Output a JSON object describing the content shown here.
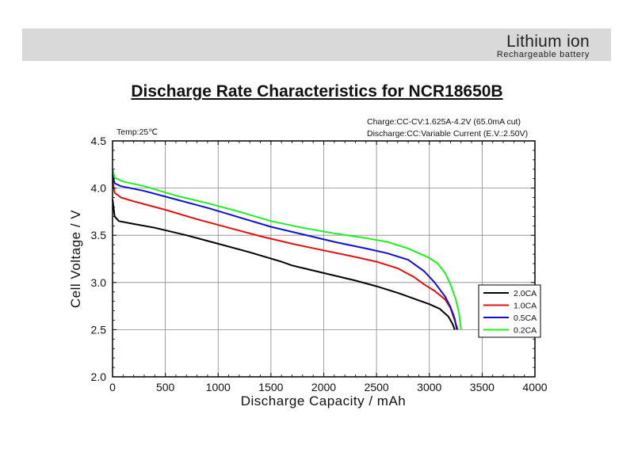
{
  "banner": {
    "brand": "Lithium ion",
    "subtitle": "Rechargeable  battery"
  },
  "chart_data": {
    "type": "line",
    "title": "Discharge Rate Characteristics for NCR18650B",
    "annotations": {
      "temp": "Temp:25℃",
      "charge": "Charge:CC-CV:1.625A-4.2V (65.0mA cut)",
      "discharge": "Discharge:CC:Variable Current (E.V.:2.50V)"
    },
    "xlabel": "Discharge  Capacity  /  mAh",
    "ylabel": "Cell  Voltage  /  V",
    "xlim": [
      0,
      4000
    ],
    "ylim": [
      2.0,
      4.5
    ],
    "xticks": [
      "0",
      "500",
      "1000",
      "1500",
      "2000",
      "2500",
      "3000",
      "3500",
      "4000"
    ],
    "yticks": [
      "2.0",
      "2.5",
      "3.0",
      "3.5",
      "4.0",
      "4.5"
    ],
    "grid": true,
    "legend_position": "right",
    "series": [
      {
        "name": "2.0CA",
        "color": "#000000",
        "points": [
          [
            0,
            3.88
          ],
          [
            20,
            3.7
          ],
          [
            60,
            3.65
          ],
          [
            200,
            3.62
          ],
          [
            400,
            3.58
          ],
          [
            700,
            3.5
          ],
          [
            1000,
            3.41
          ],
          [
            1300,
            3.32
          ],
          [
            1600,
            3.22
          ],
          [
            1700,
            3.18
          ],
          [
            2000,
            3.1
          ],
          [
            2300,
            3.02
          ],
          [
            2500,
            2.96
          ],
          [
            2700,
            2.89
          ],
          [
            2900,
            2.81
          ],
          [
            3000,
            2.77
          ],
          [
            3100,
            2.72
          ],
          [
            3180,
            2.64
          ],
          [
            3220,
            2.56
          ],
          [
            3240,
            2.5
          ]
        ]
      },
      {
        "name": "1.0CA",
        "color": "#e01010",
        "points": [
          [
            0,
            4.08
          ],
          [
            20,
            3.95
          ],
          [
            80,
            3.9
          ],
          [
            200,
            3.86
          ],
          [
            500,
            3.77
          ],
          [
            800,
            3.67
          ],
          [
            1100,
            3.58
          ],
          [
            1400,
            3.49
          ],
          [
            1700,
            3.41
          ],
          [
            2000,
            3.34
          ],
          [
            2300,
            3.27
          ],
          [
            2500,
            3.22
          ],
          [
            2700,
            3.15
          ],
          [
            2850,
            3.06
          ],
          [
            2950,
            2.98
          ],
          [
            3050,
            2.91
          ],
          [
            3150,
            2.82
          ],
          [
            3200,
            2.73
          ],
          [
            3230,
            2.63
          ],
          [
            3270,
            2.5
          ]
        ]
      },
      {
        "name": "0.5CA",
        "color": "#1010cc",
        "points": [
          [
            0,
            4.14
          ],
          [
            20,
            4.05
          ],
          [
            80,
            4.02
          ],
          [
            300,
            3.97
          ],
          [
            600,
            3.88
          ],
          [
            900,
            3.79
          ],
          [
            1200,
            3.69
          ],
          [
            1500,
            3.59
          ],
          [
            1800,
            3.51
          ],
          [
            2100,
            3.43
          ],
          [
            2400,
            3.36
          ],
          [
            2600,
            3.31
          ],
          [
            2800,
            3.24
          ],
          [
            2950,
            3.12
          ],
          [
            3050,
            3.0
          ],
          [
            3150,
            2.85
          ],
          [
            3200,
            2.74
          ],
          [
            3240,
            2.62
          ],
          [
            3260,
            2.5
          ]
        ]
      },
      {
        "name": "0.2CA",
        "color": "#22ee22",
        "points": [
          [
            0,
            4.2
          ],
          [
            20,
            4.11
          ],
          [
            100,
            4.07
          ],
          [
            300,
            4.02
          ],
          [
            600,
            3.92
          ],
          [
            900,
            3.84
          ],
          [
            1200,
            3.75
          ],
          [
            1500,
            3.65
          ],
          [
            1800,
            3.58
          ],
          [
            2100,
            3.52
          ],
          [
            2400,
            3.47
          ],
          [
            2600,
            3.43
          ],
          [
            2800,
            3.36
          ],
          [
            3000,
            3.26
          ],
          [
            3080,
            3.2
          ],
          [
            3150,
            3.1
          ],
          [
            3200,
            2.98
          ],
          [
            3250,
            2.82
          ],
          [
            3280,
            2.68
          ],
          [
            3300,
            2.5
          ]
        ]
      }
    ]
  }
}
